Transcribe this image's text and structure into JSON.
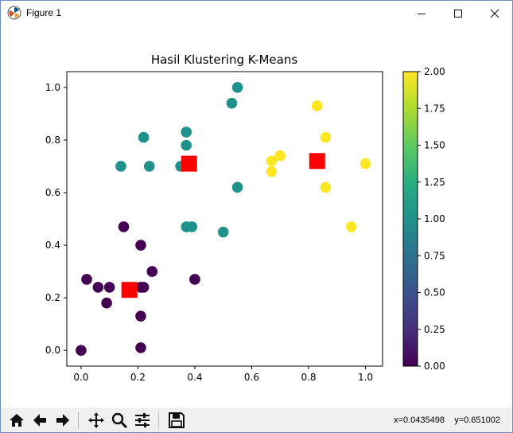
{
  "window": {
    "title": "Figure 1",
    "icon": "matplotlib-icon",
    "controls": [
      "minimize-icon",
      "maximize-icon",
      "close-icon"
    ]
  },
  "toolbar": {
    "buttons": [
      "home-icon",
      "back-arrow-icon",
      "forward-arrow-icon",
      "pan-icon",
      "zoom-icon",
      "configure-subplots-icon",
      "save-icon"
    ],
    "coords_text": "x=0.0435498    y=0.651002"
  },
  "chart_data": {
    "type": "scatter",
    "title": "Hasil Klustering K-Means",
    "xlabel": "",
    "ylabel": "",
    "xlim": [
      -0.05,
      1.06
    ],
    "ylim": [
      -0.06,
      1.06
    ],
    "xticks": [
      "0.0",
      "0.2",
      "0.4",
      "0.6",
      "0.8",
      "1.0"
    ],
    "yticks": [
      "0.0",
      "0.2",
      "0.4",
      "0.6",
      "0.8",
      "1.0"
    ],
    "grid": false,
    "colormap": "viridis",
    "colors": {
      "0": "#440154",
      "1": "#21918c",
      "2": "#fde725",
      "centroid": "#ff0000"
    },
    "points": [
      {
        "x": 0.0,
        "y": 0.0,
        "c": 0
      },
      {
        "x": 0.02,
        "y": 0.27,
        "c": 0
      },
      {
        "x": 0.06,
        "y": 0.24,
        "c": 0
      },
      {
        "x": 0.09,
        "y": 0.18,
        "c": 0
      },
      {
        "x": 0.1,
        "y": 0.24,
        "c": 0
      },
      {
        "x": 0.15,
        "y": 0.47,
        "c": 0
      },
      {
        "x": 0.21,
        "y": 0.4,
        "c": 0
      },
      {
        "x": 0.21,
        "y": 0.24,
        "c": 0
      },
      {
        "x": 0.22,
        "y": 0.24,
        "c": 0
      },
      {
        "x": 0.21,
        "y": 0.13,
        "c": 0
      },
      {
        "x": 0.21,
        "y": 0.01,
        "c": 0
      },
      {
        "x": 0.25,
        "y": 0.3,
        "c": 0
      },
      {
        "x": 0.4,
        "y": 0.27,
        "c": 0
      },
      {
        "x": 0.14,
        "y": 0.7,
        "c": 1
      },
      {
        "x": 0.22,
        "y": 0.81,
        "c": 1
      },
      {
        "x": 0.24,
        "y": 0.7,
        "c": 1
      },
      {
        "x": 0.35,
        "y": 0.7,
        "c": 1
      },
      {
        "x": 0.37,
        "y": 0.83,
        "c": 1
      },
      {
        "x": 0.37,
        "y": 0.78,
        "c": 1
      },
      {
        "x": 0.37,
        "y": 0.47,
        "c": 1
      },
      {
        "x": 0.39,
        "y": 0.47,
        "c": 1
      },
      {
        "x": 0.5,
        "y": 0.45,
        "c": 1
      },
      {
        "x": 0.53,
        "y": 0.94,
        "c": 1
      },
      {
        "x": 0.55,
        "y": 1.0,
        "c": 1
      },
      {
        "x": 0.55,
        "y": 0.62,
        "c": 1
      },
      {
        "x": 0.67,
        "y": 0.72,
        "c": 2
      },
      {
        "x": 0.67,
        "y": 0.68,
        "c": 2
      },
      {
        "x": 0.7,
        "y": 0.74,
        "c": 2
      },
      {
        "x": 0.83,
        "y": 0.93,
        "c": 2
      },
      {
        "x": 0.86,
        "y": 0.81,
        "c": 2
      },
      {
        "x": 0.86,
        "y": 0.62,
        "c": 2
      },
      {
        "x": 0.95,
        "y": 0.47,
        "c": 2
      },
      {
        "x": 1.0,
        "y": 0.71,
        "c": 2
      }
    ],
    "centroids": [
      {
        "x": 0.17,
        "y": 0.23
      },
      {
        "x": 0.38,
        "y": 0.71
      },
      {
        "x": 0.83,
        "y": 0.72
      }
    ],
    "colorbar": {
      "min": 0.0,
      "max": 2.0,
      "ticks": [
        "0.00",
        "0.25",
        "0.50",
        "0.75",
        "1.00",
        "1.25",
        "1.50",
        "1.75",
        "2.00"
      ]
    }
  }
}
